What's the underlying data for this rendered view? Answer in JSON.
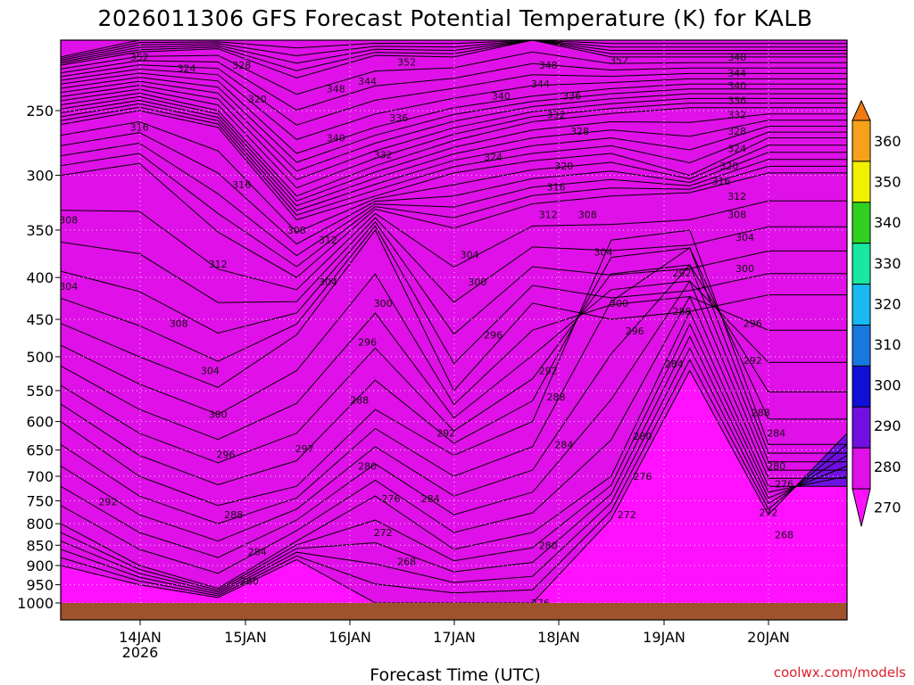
{
  "chart_data": {
    "type": "heatmap",
    "title": "2026011306 GFS Forecast Potential Temperature (K) for KALB",
    "xlabel": "Forecast Time (UTC)",
    "ylabel": "",
    "credit": "coolwx.com/models",
    "x_tick_labels": [
      "14JAN",
      "15JAN",
      "16JAN",
      "17JAN",
      "18JAN",
      "19JAN",
      "20JAN"
    ],
    "x_tick_sublabel": "2026",
    "y_tick_labels": [
      "250",
      "300",
      "350",
      "400",
      "450",
      "500",
      "550",
      "600",
      "650",
      "700",
      "750",
      "800",
      "850",
      "900",
      "950",
      "1000"
    ],
    "y_axis": {
      "units": "hPa",
      "range": [
        1000,
        200
      ],
      "scale": "log-pressure"
    },
    "colorbar": {
      "tick_labels": [
        "360",
        "350",
        "340",
        "330",
        "320",
        "310",
        "300",
        "290",
        "280",
        "270"
      ],
      "bands": [
        {
          "min": 350,
          "max": 360,
          "color": "#f5a21a"
        },
        {
          "min": 340,
          "max": 350,
          "color": "#f0f000"
        },
        {
          "min": 330,
          "max": 340,
          "color": "#30d020"
        },
        {
          "min": 320,
          "max": 330,
          "color": "#18e8a0"
        },
        {
          "min": 310,
          "max": 320,
          "color": "#18b8f0"
        },
        {
          "min": 300,
          "max": 310,
          "color": "#1878e0"
        },
        {
          "min": 290,
          "max": 300,
          "color": "#1010d8"
        },
        {
          "min": 280,
          "max": 290,
          "color": "#7010e0"
        },
        {
          "min": 270,
          "max": 280,
          "color": "#e010e8"
        }
      ],
      "extend": "both"
    },
    "contour_interval_K": 2,
    "ground_color": "#a0522d",
    "series": [
      {
        "name": "356",
        "values": [
          215,
          205,
          205,
          205,
          205,
          205,
          205,
          205,
          205,
          205,
          205
        ]
      },
      {
        "name": "350",
        "values": [
          220,
          212,
          210,
          228,
          214,
          215,
          205,
          215,
          215,
          215,
          215
        ]
      },
      {
        "name": "340",
        "values": [
          232,
          225,
          230,
          282,
          262,
          248,
          240,
          235,
          232,
          232,
          232
        ]
      },
      {
        "name": "330",
        "values": [
          246,
          238,
          250,
          318,
          292,
          272,
          258,
          252,
          248,
          248,
          248
        ]
      },
      {
        "name": "320",
        "values": [
          260,
          250,
          262,
          340,
          318,
          298,
          288,
          282,
          300,
          270,
          270
        ]
      },
      {
        "name": "310",
        "values": [
          300,
          290,
          352,
          400,
          330,
          348,
          325,
          318,
          315,
          298,
          298
        ]
      },
      {
        "name": "300",
        "values": [
          455,
          500,
          545,
          470,
          350,
          550,
          430,
          450,
          440,
          420,
          420
        ]
      },
      {
        "name": "290",
        "values": [
          600,
          700,
          760,
          720,
          580,
          660,
          600,
          360,
          350,
          640,
          640
        ]
      },
      {
        "name": "280",
        "values": [
          800,
          900,
          960,
          840,
          740,
          860,
          820,
          700,
          440,
          720,
          720
        ]
      },
      {
        "name": "270",
        "values": [
          900,
          950,
          985,
          885,
          1000,
          1000,
          1000,
          790,
          520,
          780,
          620
        ]
      }
    ],
    "contour_labels": [
      {
        "text": "352",
        "x": 0.1,
        "y": 215
      },
      {
        "text": "324",
        "x": 0.16,
        "y": 222
      },
      {
        "text": "328",
        "x": 0.23,
        "y": 220
      },
      {
        "text": "320",
        "x": 0.25,
        "y": 242
      },
      {
        "text": "316",
        "x": 0.1,
        "y": 262
      },
      {
        "text": "316",
        "x": 0.23,
        "y": 308
      },
      {
        "text": "308",
        "x": 0.01,
        "y": 340
      },
      {
        "text": "312",
        "x": 0.2,
        "y": 385
      },
      {
        "text": "304",
        "x": 0.01,
        "y": 410
      },
      {
        "text": "308",
        "x": 0.15,
        "y": 455
      },
      {
        "text": "304",
        "x": 0.19,
        "y": 520
      },
      {
        "text": "300",
        "x": 0.2,
        "y": 588
      },
      {
        "text": "296",
        "x": 0.21,
        "y": 658
      },
      {
        "text": "297",
        "x": 0.31,
        "y": 648
      },
      {
        "text": "292",
        "x": 0.06,
        "y": 752
      },
      {
        "text": "288",
        "x": 0.22,
        "y": 780
      },
      {
        "text": "284",
        "x": 0.25,
        "y": 865
      },
      {
        "text": "280",
        "x": 0.24,
        "y": 940
      },
      {
        "text": "308",
        "x": 0.3,
        "y": 350
      },
      {
        "text": "312",
        "x": 0.34,
        "y": 360
      },
      {
        "text": "304",
        "x": 0.34,
        "y": 405
      },
      {
        "text": "348",
        "x": 0.35,
        "y": 235
      },
      {
        "text": "344",
        "x": 0.39,
        "y": 230
      },
      {
        "text": "340",
        "x": 0.35,
        "y": 270
      },
      {
        "text": "352",
        "x": 0.44,
        "y": 218
      },
      {
        "text": "336",
        "x": 0.43,
        "y": 255
      },
      {
        "text": "332",
        "x": 0.41,
        "y": 283
      },
      {
        "text": "300",
        "x": 0.41,
        "y": 430
      },
      {
        "text": "296",
        "x": 0.39,
        "y": 480
      },
      {
        "text": "288",
        "x": 0.38,
        "y": 565
      },
      {
        "text": "280",
        "x": 0.39,
        "y": 680
      },
      {
        "text": "276",
        "x": 0.42,
        "y": 745
      },
      {
        "text": "284",
        "x": 0.47,
        "y": 745
      },
      {
        "text": "272",
        "x": 0.41,
        "y": 820
      },
      {
        "text": "268",
        "x": 0.44,
        "y": 890
      },
      {
        "text": "292",
        "x": 0.49,
        "y": 620
      },
      {
        "text": "340",
        "x": 0.56,
        "y": 240
      },
      {
        "text": "324",
        "x": 0.55,
        "y": 285
      },
      {
        "text": "304",
        "x": 0.52,
        "y": 375
      },
      {
        "text": "300",
        "x": 0.53,
        "y": 405
      },
      {
        "text": "296",
        "x": 0.55,
        "y": 470
      },
      {
        "text": "348",
        "x": 0.62,
        "y": 220
      },
      {
        "text": "344",
        "x": 0.61,
        "y": 232
      },
      {
        "text": "336",
        "x": 0.65,
        "y": 240
      },
      {
        "text": "332",
        "x": 0.63,
        "y": 253
      },
      {
        "text": "328",
        "x": 0.66,
        "y": 265
      },
      {
        "text": "320",
        "x": 0.64,
        "y": 292
      },
      {
        "text": "316",
        "x": 0.63,
        "y": 310
      },
      {
        "text": "312",
        "x": 0.62,
        "y": 335
      },
      {
        "text": "308",
        "x": 0.67,
        "y": 335
      },
      {
        "text": "304",
        "x": 0.69,
        "y": 372
      },
      {
        "text": "300",
        "x": 0.71,
        "y": 430
      },
      {
        "text": "296",
        "x": 0.73,
        "y": 465
      },
      {
        "text": "292",
        "x": 0.62,
        "y": 520
      },
      {
        "text": "288",
        "x": 0.63,
        "y": 560
      },
      {
        "text": "284",
        "x": 0.64,
        "y": 640
      },
      {
        "text": "280",
        "x": 0.62,
        "y": 850
      },
      {
        "text": "276",
        "x": 0.61,
        "y": 1000
      },
      {
        "text": "352",
        "x": 0.71,
        "y": 217
      },
      {
        "text": "292",
        "x": 0.79,
        "y": 395
      },
      {
        "text": "288",
        "x": 0.79,
        "y": 440
      },
      {
        "text": "284",
        "x": 0.78,
        "y": 510
      },
      {
        "text": "280",
        "x": 0.74,
        "y": 625
      },
      {
        "text": "276",
        "x": 0.74,
        "y": 700
      },
      {
        "text": "272",
        "x": 0.72,
        "y": 780
      },
      {
        "text": "348",
        "x": 0.86,
        "y": 215
      },
      {
        "text": "344",
        "x": 0.86,
        "y": 225
      },
      {
        "text": "340",
        "x": 0.86,
        "y": 233
      },
      {
        "text": "336",
        "x": 0.86,
        "y": 243
      },
      {
        "text": "332",
        "x": 0.86,
        "y": 253
      },
      {
        "text": "328",
        "x": 0.86,
        "y": 265
      },
      {
        "text": "324",
        "x": 0.86,
        "y": 278
      },
      {
        "text": "320",
        "x": 0.85,
        "y": 292
      },
      {
        "text": "316",
        "x": 0.84,
        "y": 305
      },
      {
        "text": "312",
        "x": 0.86,
        "y": 318
      },
      {
        "text": "308",
        "x": 0.86,
        "y": 335
      },
      {
        "text": "304",
        "x": 0.87,
        "y": 357
      },
      {
        "text": "300",
        "x": 0.87,
        "y": 390
      },
      {
        "text": "296",
        "x": 0.88,
        "y": 455
      },
      {
        "text": "292",
        "x": 0.88,
        "y": 505
      },
      {
        "text": "288",
        "x": 0.89,
        "y": 585
      },
      {
        "text": "284",
        "x": 0.91,
        "y": 620
      },
      {
        "text": "280",
        "x": 0.91,
        "y": 680
      },
      {
        "text": "276",
        "x": 0.92,
        "y": 715
      },
      {
        "text": "272",
        "x": 0.9,
        "y": 775
      },
      {
        "text": "268",
        "x": 0.92,
        "y": 825
      }
    ]
  }
}
